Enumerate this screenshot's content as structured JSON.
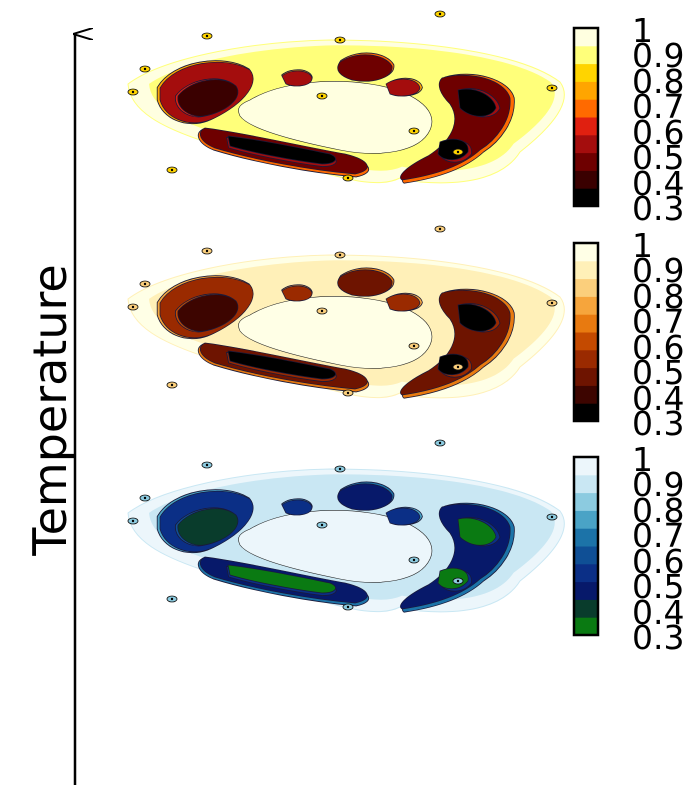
{
  "axis": {
    "label": "Temperature"
  },
  "colors": {
    "hot": [
      "#000000",
      "#3a0000",
      "#6e0000",
      "#a40d0d",
      "#e02010",
      "#ff6a00",
      "#ffa500",
      "#ffd400",
      "#ffff7a",
      "#ffffe0"
    ],
    "afmhot": [
      "#000000",
      "#3d0500",
      "#6e1400",
      "#9a2a00",
      "#c44a00",
      "#e87a10",
      "#f6a53c",
      "#fbcf7c",
      "#fff0b8",
      "#ffffe6"
    ],
    "blues": [
      "#0a7a12",
      "#093c2c",
      "#07196a",
      "#0b2f86",
      "#0f4f95",
      "#1c73a8",
      "#4aa3c6",
      "#8ccbe0",
      "#c9e7f3",
      "#ecf6fb"
    ]
  },
  "chart_data": [
    {
      "type": "heatmap",
      "colormap": "hot",
      "colorbar": {
        "ticks": [
          "1",
          "0.9",
          "0.8",
          "0.7",
          "0.6",
          "0.5",
          "0.4",
          "0.3"
        ],
        "range": [
          0.3,
          1
        ]
      }
    },
    {
      "type": "heatmap",
      "colormap": "afmhot",
      "colorbar": {
        "ticks": [
          "1",
          "0.9",
          "0.8",
          "0.7",
          "0.6",
          "0.5",
          "0.4",
          "0.3"
        ],
        "range": [
          0.3,
          1
        ]
      }
    },
    {
      "type": "heatmap",
      "colormap": "blues",
      "colorbar": {
        "ticks": [
          "1",
          "0.9",
          "0.8",
          "0.7",
          "0.6",
          "0.5",
          "0.4",
          "0.3"
        ],
        "range": [
          0.3,
          1
        ]
      }
    }
  ]
}
